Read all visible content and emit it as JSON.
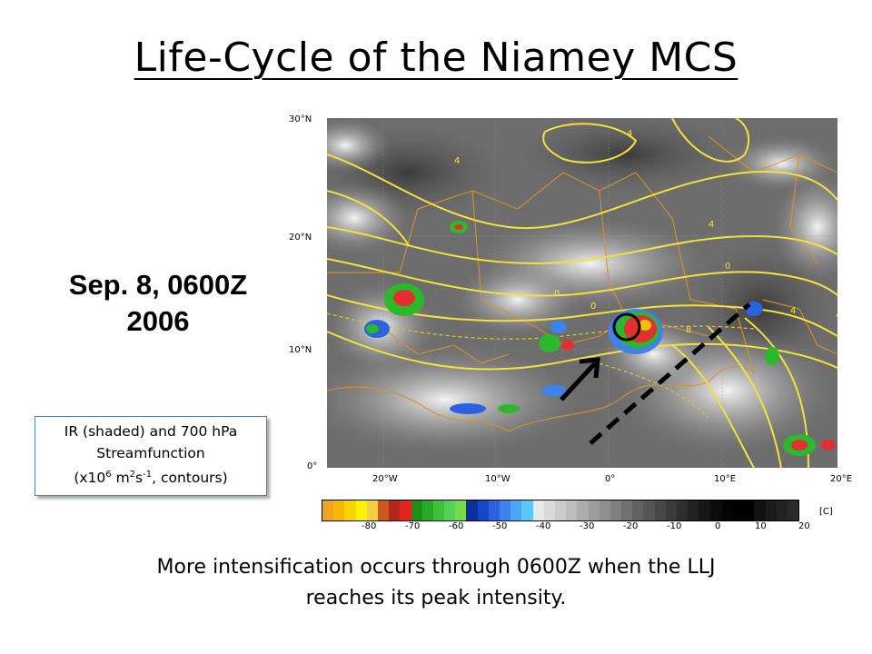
{
  "title": "Life-Cycle of the Niamey MCS",
  "date_line1": "Sep. 8, 0600Z",
  "date_line2": "2006",
  "legend": {
    "line1": "IR (shaded) and 700 hPa",
    "line2": "Streamfunction",
    "line3_prefix": "(x10",
    "line3_exp1": "6",
    "line3_mid": " m",
    "line3_exp2": "2",
    "line3_s": "s",
    "line3_exp3": "-1",
    "line3_suffix": ", contours)"
  },
  "caption_line1": "More intensification occurs through 0600Z when the LLJ",
  "caption_line2": "reaches its peak intensity.",
  "map": {
    "lat_labels": [
      "30°N",
      "20°N",
      "10°N",
      "0°"
    ],
    "lon_labels": [
      "20°W",
      "10°W",
      "0°",
      "10°E",
      "20°E"
    ],
    "contour_labels": [
      "4",
      "4",
      "4",
      "0",
      "0",
      "0",
      "4",
      "8",
      "4"
    ],
    "colorbar_ticks": [
      "-80",
      "-70",
      "-60",
      "-50",
      "-40",
      "-30",
      "-20",
      "-10",
      "0",
      "10",
      "20"
    ],
    "colorbar_unit": "[C]",
    "colorbar_colors": [
      "#f2a21f",
      "#f5b800",
      "#f8d400",
      "#fbf200",
      "#f3d040",
      "#c85a1e",
      "#b0281c",
      "#e2231f",
      "#1a8f1a",
      "#27a827",
      "#3bc23b",
      "#56d256",
      "#74dc4a",
      "#0b2f9e",
      "#1846c8",
      "#2a62e0",
      "#3d82ee",
      "#4aa8f5",
      "#59c7f8",
      "#e8e8e8",
      "#dadada",
      "#cccccc",
      "#bdbdbd",
      "#adadad",
      "#9e9e9e",
      "#8f8f8f",
      "#808080",
      "#717171",
      "#626262",
      "#555555",
      "#474747",
      "#3b3b3b",
      "#2e2e2e",
      "#222222",
      "#161616",
      "#0c0c0c",
      "#050505",
      "#000000",
      "#000000",
      "#111111",
      "#1a1a1a",
      "#222222",
      "#2a2a2a"
    ]
  }
}
